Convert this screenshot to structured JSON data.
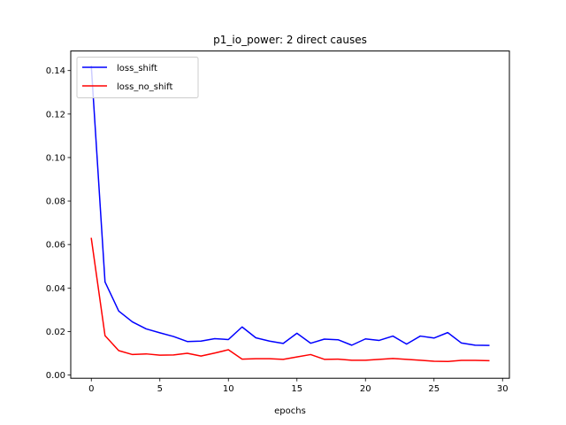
{
  "chart_data": {
    "type": "line",
    "title": "p1_io_power: 2 direct causes",
    "xlabel": "epochs",
    "ylabel": "",
    "xlim": [
      -1.5,
      30.5
    ],
    "ylim": [
      -0.0015,
      0.149
    ],
    "xticks": [
      0,
      5,
      10,
      15,
      20,
      25,
      30
    ],
    "xtick_labels": [
      "0",
      "5",
      "10",
      "15",
      "20",
      "25",
      "30"
    ],
    "yticks": [
      0.0,
      0.02,
      0.04,
      0.06,
      0.08,
      0.1,
      0.12,
      0.14
    ],
    "ytick_labels": [
      "0.00",
      "0.02",
      "0.04",
      "0.06",
      "0.08",
      "0.10",
      "0.12",
      "0.14"
    ],
    "grid": false,
    "legend_position": "top-left",
    "x": [
      0,
      1,
      2,
      3,
      4,
      5,
      6,
      7,
      8,
      9,
      10,
      11,
      12,
      13,
      14,
      15,
      16,
      17,
      18,
      19,
      20,
      21,
      22,
      23,
      24,
      25,
      26,
      27,
      28,
      29
    ],
    "series": [
      {
        "name": "loss_shift",
        "color": "#0000ff",
        "values": [
          0.142,
          0.0428,
          0.0294,
          0.0244,
          0.0212,
          0.0194,
          0.0177,
          0.0154,
          0.0156,
          0.0167,
          0.0163,
          0.0221,
          0.0171,
          0.0156,
          0.0145,
          0.0192,
          0.0146,
          0.0165,
          0.0162,
          0.0137,
          0.0166,
          0.0159,
          0.0179,
          0.0142,
          0.0179,
          0.017,
          0.0195,
          0.0147,
          0.0137,
          0.0136
        ]
      },
      {
        "name": "loss_no_shift",
        "color": "#ff0000",
        "values": [
          0.0628,
          0.0181,
          0.0112,
          0.0094,
          0.0097,
          0.0091,
          0.0092,
          0.01,
          0.0087,
          0.0101,
          0.0116,
          0.0073,
          0.0075,
          0.0075,
          0.0072,
          0.0083,
          0.0094,
          0.0072,
          0.0073,
          0.0068,
          0.0068,
          0.0072,
          0.0076,
          0.0072,
          0.0068,
          0.0063,
          0.0062,
          0.0067,
          0.0067,
          0.0066
        ]
      }
    ]
  }
}
